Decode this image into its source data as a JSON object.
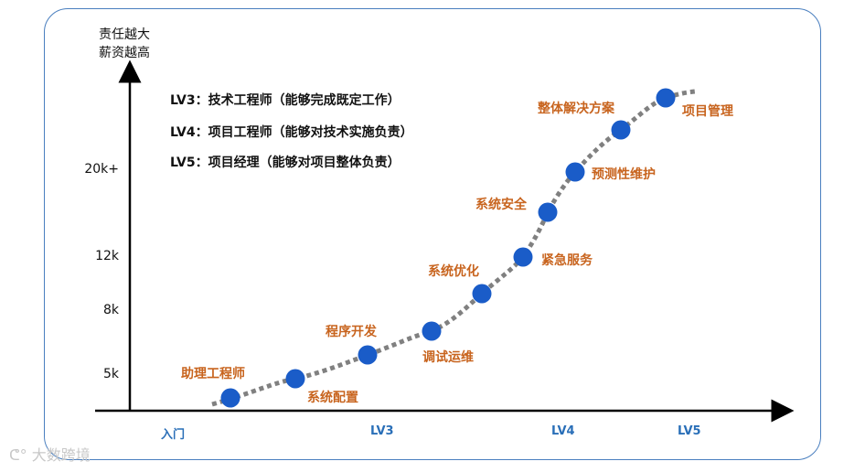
{
  "y_axis": {
    "label_line1": "责任越大",
    "label_line2": "薪资越高",
    "ticks": [
      "20k+",
      "12k",
      "8k",
      "5k"
    ]
  },
  "x_axis": {
    "labels": [
      "入门",
      "LV3",
      "LV4",
      "LV5"
    ]
  },
  "legend": [
    "LV3：技术工程师（能够完成既定工作）",
    "LV4：项目工程师（能够对技术实施负责）",
    "LV5：项目经理（能够对项目整体负责）"
  ],
  "points": [
    "助理工程师",
    "系统配置",
    "程序开发",
    "调试运维",
    "系统优化",
    "紧急服务",
    "系统安全",
    "预测性维护",
    "整体解决方案",
    "项目管理"
  ],
  "colors": {
    "dot": "#1a5cc8",
    "label": "#c8641e",
    "axis": "#000000",
    "curve": "#808080",
    "x_label": "#2a6fb8",
    "frame": "#4a7fbf"
  },
  "watermark": "大数跨境"
}
